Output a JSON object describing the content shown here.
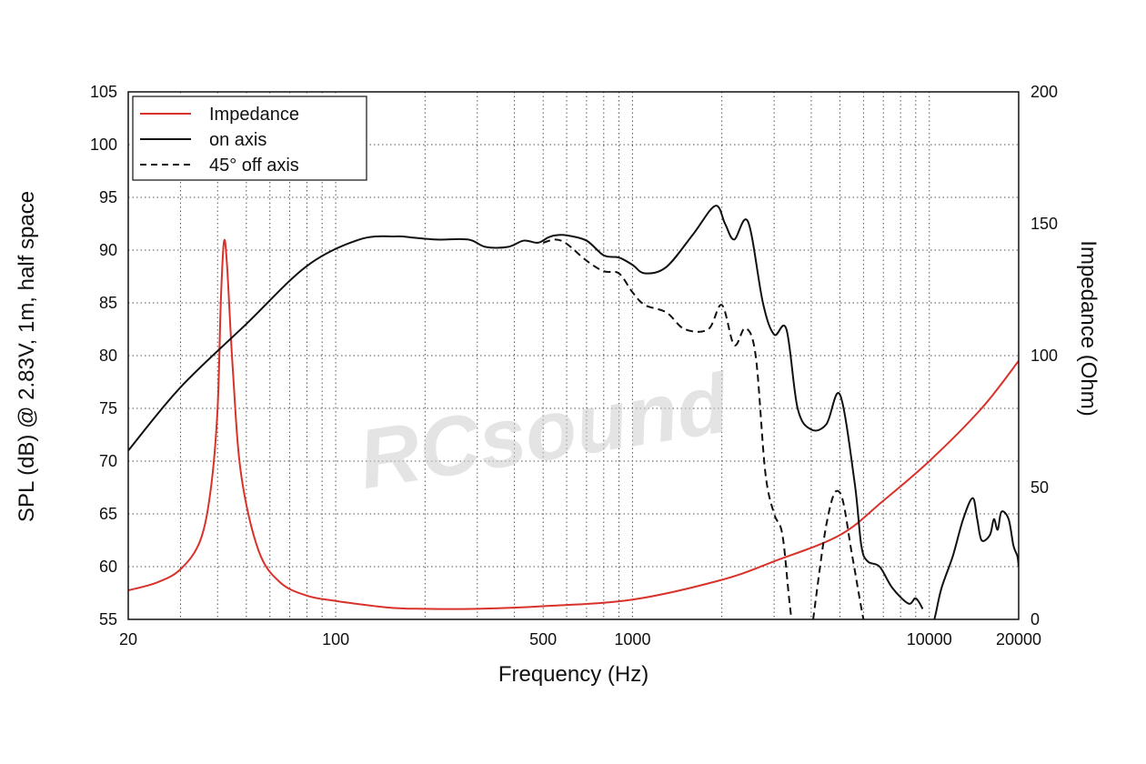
{
  "watermark": "RCsound",
  "chart_data": {
    "type": "line",
    "xlabel": "Frequency (Hz)",
    "ylabel": "SPL (dB) @ 2.83V, 1m, half space",
    "y2label": "Impedance (Ohm)",
    "xscale": "log",
    "xlim": [
      20,
      20000
    ],
    "ylim": [
      55,
      105
    ],
    "y2lim": [
      0,
      200
    ],
    "xticks": [
      20,
      100,
      500,
      1000,
      10000,
      20000
    ],
    "xtick_labels": [
      "20",
      "100",
      "500",
      "1000",
      "10000",
      "20000"
    ],
    "yticks": [
      55,
      60,
      65,
      70,
      75,
      80,
      85,
      90,
      95,
      100,
      105
    ],
    "y2ticks": [
      0,
      50,
      100,
      150,
      200
    ],
    "grid": true,
    "legend": {
      "placement": "top-left",
      "entries": [
        "Impedance",
        "on axis",
        "45° off axis"
      ]
    },
    "colors": {
      "impedance": "#d8322a",
      "on_axis": "#111111",
      "off_axis": "#111111"
    },
    "series": [
      {
        "name": "Impedance",
        "axis": "right",
        "style": "solid",
        "x": [
          20,
          25,
          30,
          35,
          38,
          40,
          41,
          42,
          43,
          45,
          48,
          55,
          65,
          80,
          100,
          150,
          200,
          300,
          500,
          1000,
          2000,
          3000,
          5000,
          7000,
          10000,
          15000,
          20000
        ],
        "y": [
          11,
          14,
          19,
          30,
          50,
          80,
          120,
          143,
          135,
          95,
          55,
          26,
          14,
          9,
          7,
          4.5,
          4,
          4,
          5,
          7.5,
          15,
          22,
          32,
          45,
          60,
          80,
          98
        ]
      },
      {
        "name": "on axis",
        "axis": "left",
        "style": "solid",
        "x": [
          20,
          30,
          50,
          80,
          120,
          160,
          180,
          220,
          280,
          320,
          380,
          430,
          480,
          520,
          550,
          600,
          700,
          800,
          900,
          1000,
          1100,
          1300,
          1600,
          1900,
          2050,
          2200,
          2450,
          2750,
          3000,
          3300,
          3600,
          4000,
          4500,
          5000,
          5600,
          5900,
          6200,
          6800,
          7500,
          8500,
          9000,
          9500
        ],
        "y": [
          71,
          77,
          83,
          88.5,
          91,
          91.3,
          91.2,
          91,
          91,
          90.3,
          90.3,
          90.9,
          90.7,
          91.2,
          91.4,
          91.4,
          90.9,
          89.5,
          89.3,
          88.6,
          87.8,
          88.4,
          91.5,
          94.2,
          92.5,
          91,
          92.7,
          85,
          82,
          82.5,
          75,
          73,
          73.5,
          76.3,
          68,
          62,
          60.5,
          60,
          58,
          56.5,
          57,
          56
        ]
      },
      {
        "name": "45° off axis",
        "axis": "left",
        "style": "dashed",
        "x": [
          500,
          550,
          600,
          700,
          800,
          900,
          1000,
          1100,
          1300,
          1500,
          1800,
          2000,
          2200,
          2400,
          2600,
          2800,
          3000,
          3200,
          3400,
          3700,
          4500,
          5000,
          5500,
          6000,
          6400
        ],
        "y": [
          90.7,
          91,
          90.6,
          89,
          88,
          87.8,
          86,
          84.8,
          84.1,
          82.5,
          82.5,
          84.8,
          81,
          82.6,
          80,
          69,
          65,
          63,
          56,
          48,
          64,
          67,
          61,
          55,
          52
        ]
      },
      {
        "name": "",
        "axis": "left",
        "style": "solid",
        "x": [
          9500,
          10000,
          10500,
          11000,
          12000,
          13000,
          14000,
          14500,
          15000,
          16000,
          16500,
          17000,
          17500,
          18500,
          19200,
          19800,
          20000
        ],
        "y": [
          51,
          53,
          55.5,
          58,
          61,
          64.5,
          66.5,
          64.5,
          62.5,
          63,
          64.5,
          63.5,
          65.2,
          64.5,
          62,
          61,
          60
        ]
      }
    ]
  }
}
